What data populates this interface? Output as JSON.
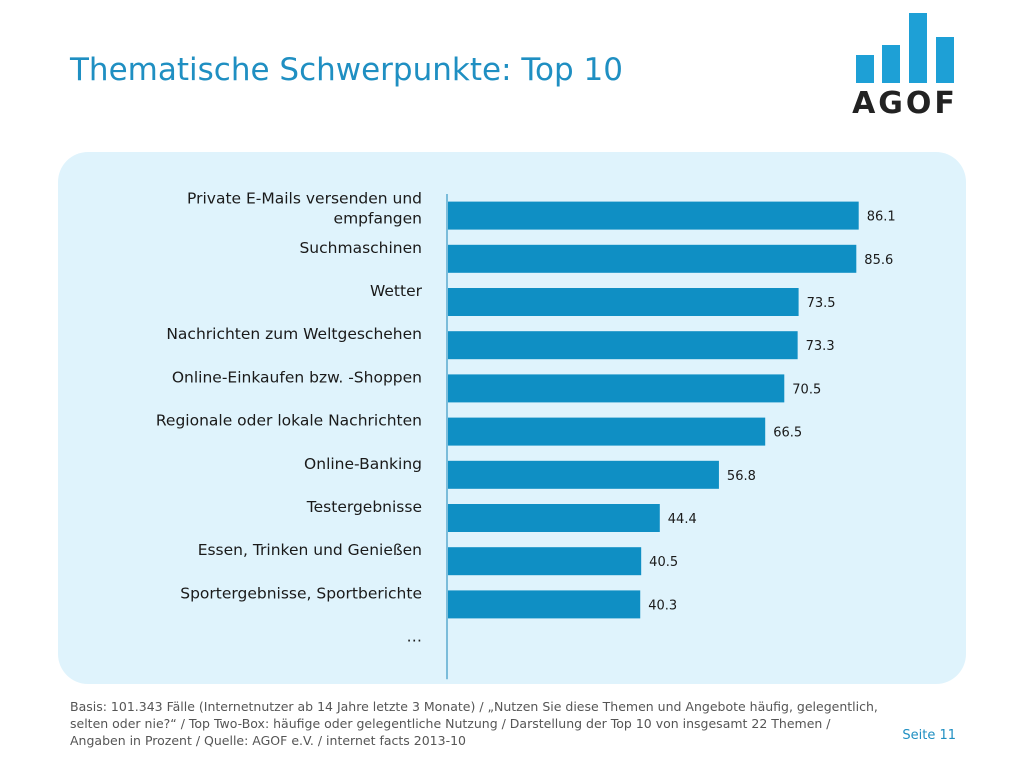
{
  "header": {
    "title": "Thematische Schwerpunkte: Top 10",
    "logo_text": "AGOF"
  },
  "colors": {
    "bar": "#0f8fc4",
    "panel": "#dff3fc",
    "title": "#1f8fc2",
    "axis": "#5aa9cf"
  },
  "chart_data": {
    "type": "bar",
    "orientation": "horizontal",
    "categories": [
      [
        "Private E-Mails versenden und",
        "empfangen"
      ],
      [
        "Suchmaschinen"
      ],
      [
        "Wetter"
      ],
      [
        "Nachrichten zum Weltgeschehen"
      ],
      [
        "Online-Einkaufen bzw. -Shoppen"
      ],
      [
        "Regionale oder lokale Nachrichten"
      ],
      [
        "Online-Banking"
      ],
      [
        "Testergebnisse"
      ],
      [
        "Essen, Trinken und Genießen"
      ],
      [
        "Sportergebnisse, Sportberichte"
      ],
      [
        "…"
      ]
    ],
    "values": [
      86.1,
      85.6,
      73.5,
      73.3,
      70.5,
      66.5,
      56.8,
      44.4,
      40.5,
      40.3,
      null
    ],
    "value_labels": [
      "86.1",
      "85.6",
      "73.5",
      "73.3",
      "70.5",
      "66.5",
      "56.8",
      "44.4",
      "40.5",
      "40.3",
      ""
    ],
    "xlim": [
      0,
      100
    ],
    "grid": false,
    "legend": "none"
  },
  "footer": {
    "note": "Basis: 101.343 Fälle (Internetnutzer ab 14 Jahre letzte 3 Monate) / „Nutzen Sie diese Themen und Angebote häufig, gelegentlich, selten oder nie?“ / Top Two-Box: häufige oder gelegentliche Nutzung / Darstellung der Top 10 von insgesamt 22 Themen / Angaben in Prozent / Quelle: AGOF e.V. / internet facts 2013-10",
    "page": "Seite 11"
  }
}
